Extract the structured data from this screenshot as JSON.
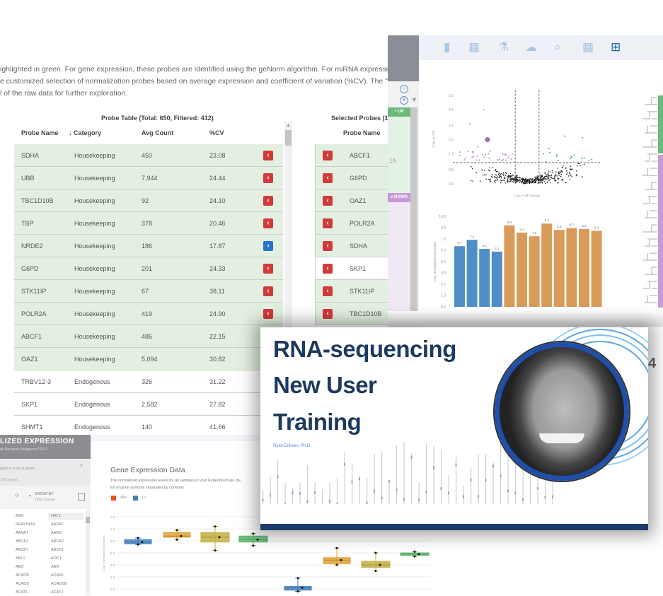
{
  "description": {
    "lines": [
      "ighlighted in green. For gene expression, these probes are identified using the geNorm algorithm. For miRNA expression, these",
      "e customized selection of normalization probes based on average expression and coefficient of variation (%CV). The \"Reset To",
      "l of the raw data for further exploration."
    ]
  },
  "probe_table": {
    "title": "Probe Table (Total: 650, Filtered: 412)",
    "columns": [
      "Probe Name",
      "↓ Category",
      "Avg Count",
      "%CV"
    ],
    "rows": [
      {
        "name": "SDHA",
        "category": "Housekeeping",
        "avg": "450",
        "cv": "23.08",
        "action": "remove",
        "highlight": true
      },
      {
        "name": "UBB",
        "category": "Housekeeping",
        "avg": "7,944",
        "cv": "24.44",
        "action": "remove",
        "highlight": true
      },
      {
        "name": "TBC1D10B",
        "category": "Housekeeping",
        "avg": "92",
        "cv": "24.10",
        "action": "remove",
        "highlight": true
      },
      {
        "name": "TBP",
        "category": "Housekeeping",
        "avg": "378",
        "cv": "20.46",
        "action": "remove",
        "highlight": true
      },
      {
        "name": "NRDE2",
        "category": "Housekeeping",
        "avg": "186",
        "cv": "17.87",
        "action": "add",
        "highlight": true
      },
      {
        "name": "G6PD",
        "category": "Housekeeping",
        "avg": "201",
        "cv": "24.33",
        "action": "remove",
        "highlight": true
      },
      {
        "name": "STK11IP",
        "category": "Housekeeping",
        "avg": "67",
        "cv": "38.11",
        "action": "remove",
        "highlight": true
      },
      {
        "name": "POLR2A",
        "category": "Housekeeping",
        "avg": "419",
        "cv": "24.90",
        "action": "remove",
        "highlight": true
      },
      {
        "name": "ABCF1",
        "category": "Housekeeping",
        "avg": "486",
        "cv": "22.15",
        "action": "remove",
        "highlight": true
      },
      {
        "name": "OAZ1",
        "category": "Housekeeping",
        "avg": "5,094",
        "cv": "30.82",
        "action": "remove",
        "highlight": true
      },
      {
        "name": "TRBV12-3",
        "category": "Endogenous",
        "avg": "326",
        "cv": "31.22",
        "action": "",
        "highlight": false
      },
      {
        "name": "SKP1",
        "category": "Endogenous",
        "avg": "2,582",
        "cv": "27.82",
        "action": "",
        "highlight": false
      },
      {
        "name": "SHMT1",
        "category": "Endogenous",
        "avg": "140",
        "cv": "41.66",
        "action": "",
        "highlight": false
      }
    ]
  },
  "selected_probes": {
    "title": "Selected Probes (10",
    "column": "Probe Name",
    "rows": [
      {
        "name": "ABCF1",
        "highlight": true
      },
      {
        "name": "G6PD",
        "highlight": true
      },
      {
        "name": "OAZ1",
        "highlight": true
      },
      {
        "name": "POLR2A",
        "highlight": true
      },
      {
        "name": "SDHA",
        "highlight": true
      },
      {
        "name": "SKP1",
        "highlight": false
      },
      {
        "name": "STK11IP",
        "highlight": true
      },
      {
        "name": "TBC1D10B",
        "highlight": true
      }
    ]
  },
  "analysis_panel": {
    "up_label": "UP",
    "down_label": "DOWN",
    "side_text": "1A",
    "right_number": "4",
    "toolbar_icons": [
      "document-icon",
      "table-link-icon",
      "flask-icon",
      "cloud-download-icon",
      "chart-zoom-icon",
      "table-export-icon",
      "heatmap-grid-icon"
    ],
    "colors": {
      "up": "#6db87a",
      "down": "#c79ad8",
      "active_icon": "#1e5fa8",
      "icon": "#a9c6e2"
    }
  },
  "chart_data": [
    {
      "type": "scatter",
      "title": "",
      "xlabel": "Log₂ Fold Change",
      "ylabel": "-Log₁₀ p-Adj",
      "yticks": [
        "0.0",
        "0.8",
        "1.7",
        "2.5",
        "3.3",
        "4.2",
        "5.0"
      ],
      "ylim": [
        0,
        5
      ],
      "thresholds": {
        "y": 1.2,
        "x": [
          -0.6,
          0.6
        ]
      },
      "series": [
        {
          "name": "",
          "color": "#222222",
          "values": "many non-significant points near origin"
        },
        {
          "name": "",
          "color": "#b68ad6",
          "values": "down-regulated significant points"
        },
        {
          "name": "",
          "color": "#5aa865",
          "values": "up-regulated significant points"
        }
      ]
    },
    {
      "type": "bar",
      "ylabel": "Log₂ Normalized Expression",
      "yticks": [
        "0.0",
        "1.3",
        "2.5",
        "3.8",
        "5.0",
        "6.3",
        "7.5",
        "8.8",
        "10.0"
      ],
      "ylim": [
        0,
        10
      ],
      "values": [
        6.7,
        7.4,
        6.4,
        6.1,
        9.0,
        8.2,
        7.8,
        9.2,
        8.5,
        8.7,
        8.6,
        8.4
      ],
      "colors": [
        "#4f8fc6",
        "#4f8fc6",
        "#4f8fc6",
        "#4f8fc6",
        "#d99b59",
        "#d99b59",
        "#d99b59",
        "#d99b59",
        "#d99b59",
        "#d99b59",
        "#d99b59",
        "#d99b59"
      ]
    },
    {
      "type": "box",
      "title": "Gene Expression Data",
      "ylabel": "Log2 Normalized Expression",
      "yticks": [
        "7.0",
        "6.5",
        "6.0",
        "5.5",
        "5.0",
        "4.5",
        "4.0"
      ],
      "ylim": [
        4.0,
        7.0
      ],
      "legend": [
        {
          "name": "48h",
          "color": "#f04e1c"
        },
        {
          "name": "1h",
          "color": "#4a7fb5"
        }
      ],
      "boxes": [
        {
          "stats": [
            5.85,
            5.88,
            5.95,
            6.05,
            6.12
          ],
          "color": "#3f7fbf"
        },
        {
          "stats": [
            6.05,
            6.15,
            6.2,
            6.35,
            6.45
          ],
          "color": "#e0a030"
        },
        {
          "stats": [
            5.6,
            5.95,
            6.15,
            6.35,
            6.6
          ],
          "color": "#c4b040"
        },
        {
          "stats": [
            5.8,
            5.95,
            6.05,
            6.2,
            6.3
          ],
          "color": "#5cb66b"
        },
        {
          "stats": [
            3.9,
            3.95,
            4.05,
            4.1,
            4.45
          ],
          "color": "#3f7fbf"
        },
        {
          "stats": [
            5.0,
            5.05,
            5.2,
            5.3,
            5.7
          ],
          "color": "#e0a030"
        },
        {
          "stats": [
            4.75,
            4.9,
            5.0,
            5.15,
            5.5
          ],
          "color": "#c4b040"
        },
        {
          "stats": [
            5.35,
            5.4,
            5.45,
            5.5,
            5.55
          ],
          "color": "#5cb66b"
        }
      ]
    }
  ],
  "expression_panel": {
    "header_title": "LIZED EXPRESSION",
    "header_subtitle": "ne Receptor Antagonist TFP P...",
    "search_placeholder": "gene or a list of genes",
    "gene_count": ",791 genes",
    "group_by_label": "GROUP BY",
    "group_by_value": "Time Course",
    "genes": [
      [
        "A2M",
        "NAT1"
      ],
      [
        "SERPINA3",
        "AADAC"
      ],
      [
        "AANAT",
        "AARS"
      ],
      [
        "ABCA1",
        "ABCA2"
      ],
      [
        "ABCB7",
        "ABCF1"
      ],
      [
        "ABL1",
        "AOC1"
      ],
      [
        "ABO",
        "ABR"
      ],
      [
        "ACACB",
        "ACADL"
      ],
      [
        "ACADS",
        "ACADSB"
      ],
      [
        "ACAT1",
        "ACAT2"
      ]
    ],
    "chart_title": "Gene Expression Data",
    "chart_desc_1": "The normalized expression levels for all samples in your Experiment are dis",
    "chart_desc_2": "list of gene symbols separated by commas.",
    "legend_48h": "48h",
    "legend_1h": "1h"
  },
  "video": {
    "title_line1": "RNA-sequencing",
    "title_line2": "New User",
    "title_line3": "Training",
    "presenter": "Ryan Eriksen, Ph.D.",
    "colors": {
      "title": "#1b3a5e",
      "ring": "#1f4fa8",
      "footer": "#1c3d6b"
    }
  }
}
